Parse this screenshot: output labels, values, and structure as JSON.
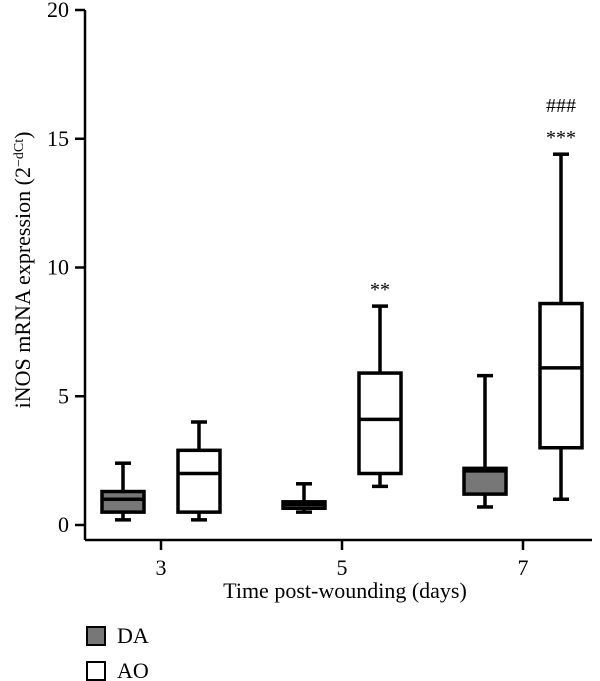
{
  "chart_data": {
    "type": "boxplot",
    "xlabel": "Time post-wounding (days)",
    "ylabel": "iNOS mRNA expression (2",
    "ylabel_sup": "−dCt",
    "ylabel_close": ")",
    "ylim": [
      0,
      20
    ],
    "yticks": [
      0,
      5,
      10,
      15,
      20
    ],
    "categories": [
      "3",
      "5",
      "7"
    ],
    "legend_position": "bottom-left",
    "series": [
      {
        "name": "DA",
        "fill": "#777777",
        "boxes": [
          {
            "min": 0.2,
            "q1": 0.5,
            "median": 1.0,
            "q3": 1.3,
            "max": 2.4
          },
          {
            "min": 0.5,
            "q1": 0.65,
            "median": 0.8,
            "q3": 0.9,
            "max": 1.6
          },
          {
            "min": 0.7,
            "q1": 1.2,
            "median": 2.1,
            "q3": 2.2,
            "max": 5.8
          }
        ]
      },
      {
        "name": "AO",
        "fill": "#ffffff",
        "boxes": [
          {
            "min": 0.2,
            "q1": 0.5,
            "median": 2.0,
            "q3": 2.9,
            "max": 4.0
          },
          {
            "min": 1.5,
            "q1": 2.0,
            "median": 4.1,
            "q3": 5.9,
            "max": 8.5
          },
          {
            "min": 1.0,
            "q1": 3.0,
            "median": 6.1,
            "q3": 8.6,
            "max": 14.4
          }
        ]
      }
    ],
    "annotations": [
      {
        "category": "5",
        "series": "AO",
        "lines": [
          "**"
        ]
      },
      {
        "category": "7",
        "series": "AO",
        "lines": [
          "###",
          "***"
        ]
      }
    ]
  }
}
